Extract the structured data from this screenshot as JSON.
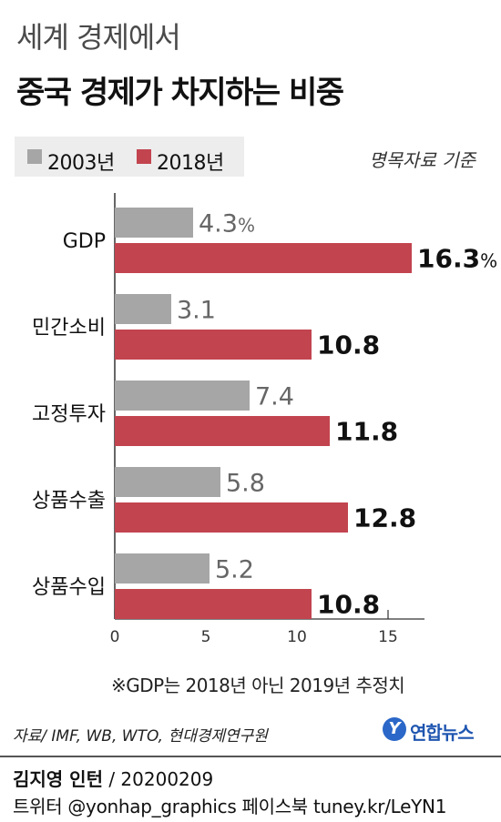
{
  "header": {
    "title_top": "세계 경제에서",
    "title_main": "중국 경제가 차지하는 비중"
  },
  "legend": {
    "items": [
      {
        "label": "2003년",
        "color": "#a6a6a6"
      },
      {
        "label": "2018년",
        "color": "#c2444f"
      }
    ],
    "basis": "명목자료 기준"
  },
  "chart_data": {
    "type": "bar",
    "orientation": "horizontal",
    "categories": [
      "GDP",
      "민간소비",
      "고정투자",
      "상품수출",
      "상품수입"
    ],
    "series": [
      {
        "name": "2003년",
        "color": "#a6a6a6",
        "values": [
          4.3,
          3.1,
          7.4,
          5.8,
          5.2
        ],
        "labels": [
          "4.3",
          "3.1",
          "7.4",
          "5.8",
          "5.2"
        ]
      },
      {
        "name": "2018년",
        "color": "#c2444f",
        "values": [
          16.3,
          10.8,
          11.8,
          12.8,
          10.8
        ],
        "labels": [
          "16.3",
          "10.8",
          "11.8",
          "12.8",
          "10.8"
        ]
      }
    ],
    "percent_suffix_on_first": "%",
    "xlim": [
      0,
      17.5
    ],
    "xticks": [
      "0",
      "5",
      "10",
      "15"
    ],
    "grid": false
  },
  "note": "※GDP는 2018년 아닌 2019년 추정치",
  "source": "자료/ IMF, WB, WTO, 현대경제연구원",
  "logo": {
    "mark": "Y",
    "text": "연합뉴스"
  },
  "credit": {
    "name": "김지영 인턴",
    "date": "/ 20200209"
  },
  "social": "트위터 @yonhap_graphics  페이스북 tuney.kr/LeYN1"
}
